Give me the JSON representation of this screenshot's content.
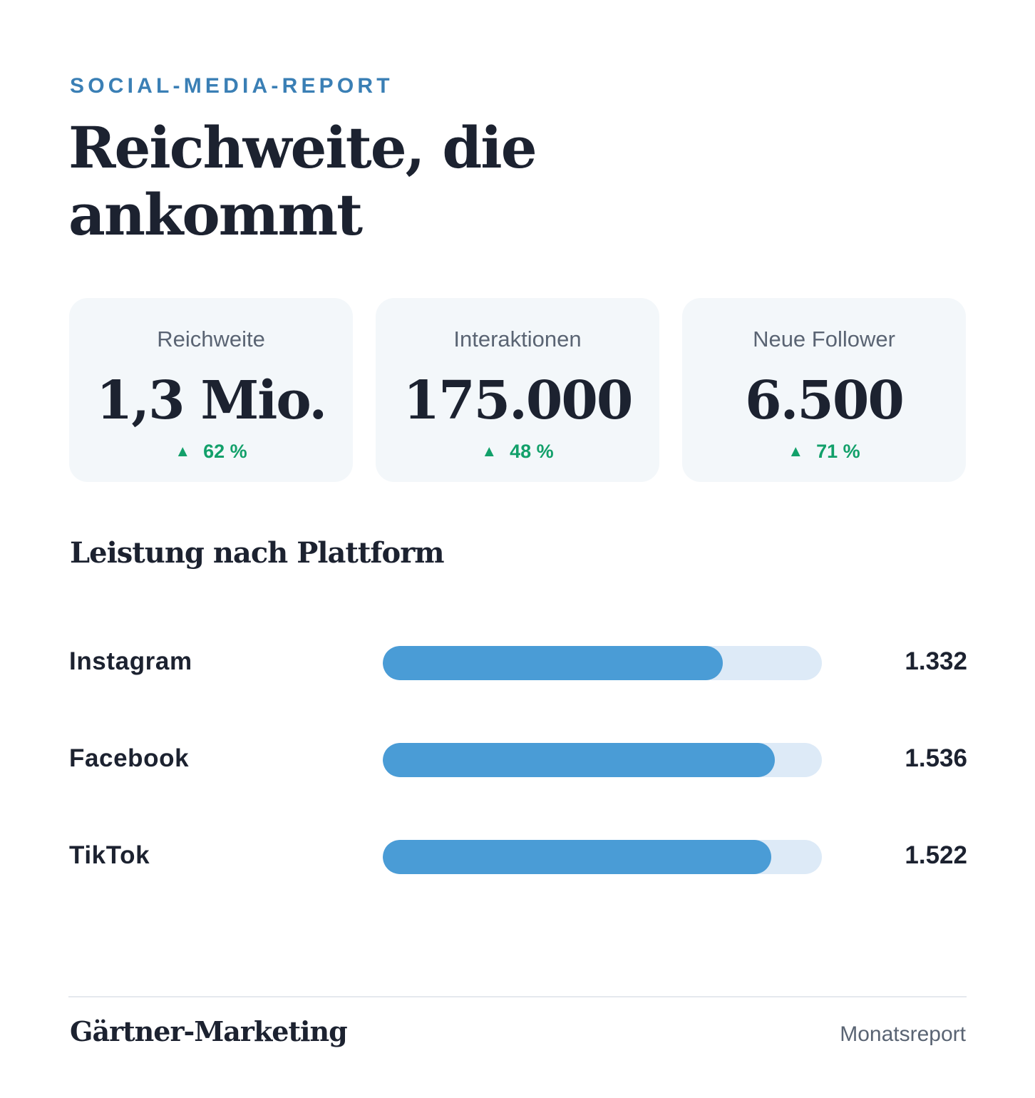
{
  "header": {
    "eyebrow": "SOCIAL-MEDIA-REPORT",
    "title": "Reichweite, die ankommt"
  },
  "kpis": [
    {
      "label": "Reichweite",
      "value": "1,3 Mio.",
      "delta": "62 %",
      "trend": "up"
    },
    {
      "label": "Interaktionen",
      "value": "175.000",
      "delta": "48 %",
      "trend": "up"
    },
    {
      "label": "Neue Follower",
      "value": "6.500",
      "delta": "71 %",
      "trend": "up"
    }
  ],
  "kpi_arrow": "▲",
  "section": {
    "title": "Leistung nach Plattform"
  },
  "chart_data": {
    "type": "bar",
    "orientation": "horizontal",
    "title": "Leistung nach Plattform",
    "categories": [
      "Instagram",
      "Facebook",
      "TikTok"
    ],
    "values": [
      1332,
      1536,
      1522
    ],
    "value_labels": [
      "1.332",
      "1.536",
      "1.522"
    ],
    "xlim": [
      0,
      1720
    ],
    "grid": false,
    "colors": {
      "fill": "#4a9cd6",
      "track": "#ddeaf7"
    }
  },
  "footer": {
    "brand": "Gärtner-Marketing",
    "note": "Monatsreport"
  },
  "colors": {
    "accent": "#3a7fb5",
    "positive": "#12a06a",
    "text": "#1c2230",
    "muted": "#5a6473",
    "card": "#f3f7fa"
  }
}
